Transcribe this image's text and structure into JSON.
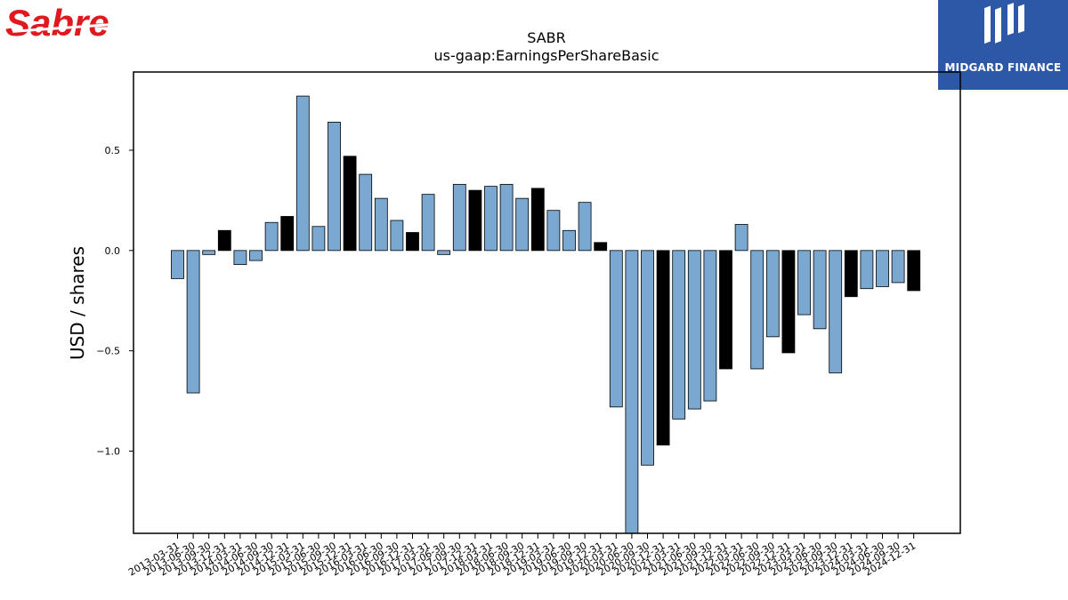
{
  "logos": {
    "left": "Sabre",
    "right": "MIDGARD FINANCE"
  },
  "colors": {
    "bar_normal": "#7aa8d0",
    "bar_highlight": "#000000",
    "bar_edge": "#000000",
    "sabre_red": "#e0191e",
    "midgard_blue": "#2d58a8"
  },
  "chart_data": {
    "type": "bar",
    "title": "SABR",
    "subtitle": "us-gaap:EarningsPerShareBasic",
    "xlabel": "",
    "ylabel": "USD / shares",
    "ylim": [
      -1.41,
      0.89
    ],
    "yticks": [
      -1.0,
      -0.5,
      0.0,
      0.5
    ],
    "ytick_labels": [
      "−1.0",
      "−0.5",
      "0.0",
      "0.5"
    ],
    "grid": false,
    "categories": [
      "2013-03-31",
      "2013-06-30",
      "2013-09-30",
      "2013-12-31",
      "2014-03-31",
      "2014-06-30",
      "2014-09-30",
      "2014-12-31",
      "2015-03-31",
      "2015-06-30",
      "2015-09-30",
      "2015-12-31",
      "2016-03-31",
      "2016-06-30",
      "2016-09-30",
      "2016-12-31",
      "2017-03-31",
      "2017-06-30",
      "2017-09-30",
      "2017-12-31",
      "2018-03-31",
      "2018-06-30",
      "2018-09-30",
      "2018-12-31",
      "2019-03-31",
      "2019-06-30",
      "2019-09-30",
      "2019-12-31",
      "2020-03-31",
      "2020-06-30",
      "2020-09-30",
      "2020-12-31",
      "2021-03-31",
      "2021-06-30",
      "2021-09-30",
      "2021-12-31",
      "2022-03-31",
      "2022-06-30",
      "2022-09-30",
      "2022-12-31",
      "2023-03-31",
      "2023-06-30",
      "2023-09-30",
      "2023-12-31",
      "2024-03-31",
      "2024-06-30",
      "2024-09-30",
      "2024-12-31"
    ],
    "values": [
      -0.14,
      -0.71,
      -0.02,
      0.1,
      -0.07,
      -0.05,
      0.14,
      0.17,
      0.77,
      0.12,
      0.64,
      0.47,
      0.38,
      0.26,
      0.15,
      0.09,
      0.28,
      -0.02,
      0.33,
      0.3,
      0.32,
      0.33,
      0.26,
      0.31,
      0.2,
      0.1,
      0.24,
      0.04,
      -0.78,
      -1.41,
      -1.07,
      -0.97,
      -0.84,
      -0.79,
      -0.75,
      -0.59,
      0.13,
      -0.59,
      -0.43,
      -0.51,
      -0.32,
      -0.39,
      -0.61,
      -0.23,
      -0.19,
      -0.18,
      -0.16,
      -0.2
    ],
    "highlighted": [
      false,
      false,
      false,
      true,
      false,
      false,
      false,
      true,
      false,
      false,
      false,
      true,
      false,
      false,
      false,
      true,
      false,
      false,
      false,
      true,
      false,
      false,
      false,
      true,
      false,
      false,
      false,
      true,
      false,
      false,
      false,
      true,
      false,
      false,
      false,
      true,
      false,
      false,
      false,
      true,
      false,
      false,
      false,
      true,
      false,
      false,
      false,
      true
    ]
  }
}
